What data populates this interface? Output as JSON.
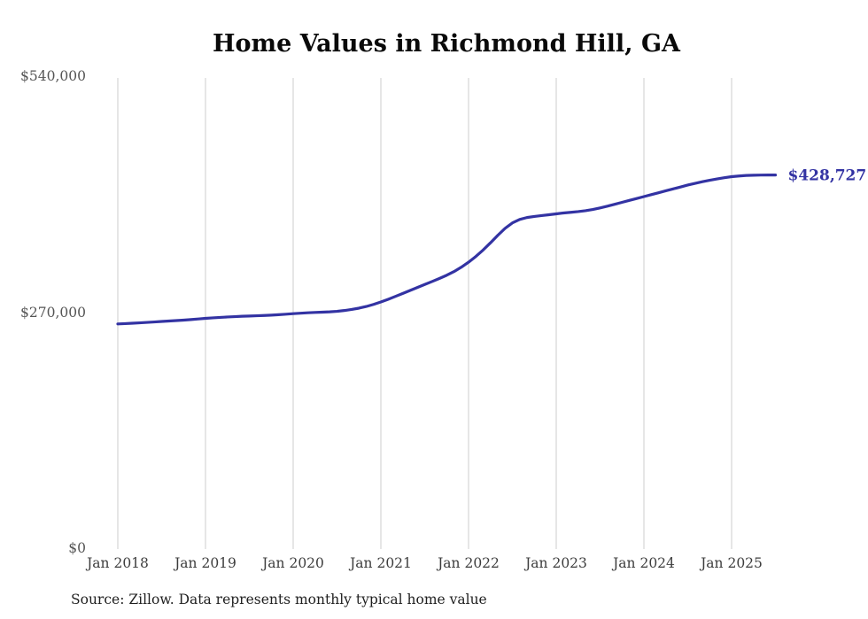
{
  "page": {
    "title": "Home Values in Richmond Hill, GA",
    "source_note": "Source: Zillow. Data represents monthly typical home value"
  },
  "chart_data": {
    "type": "line",
    "title": "Home Values in Richmond Hill, GA",
    "xlabel": "",
    "ylabel": "",
    "ylim": [
      0,
      540000
    ],
    "y_ticks": [
      0,
      270000,
      540000
    ],
    "y_tick_labels": [
      "$0",
      "$270,000",
      "$540,000"
    ],
    "x_tick_labels": [
      "Jan 2018",
      "Jan 2019",
      "Jan 2020",
      "Jan 2021",
      "Jan 2022",
      "Jan 2023",
      "Jan 2024",
      "Jan 2025"
    ],
    "x_start": "Jan 2018",
    "x_end": "Jul 2025",
    "x_frequency": "monthly",
    "grid": "vertical-only",
    "legend": "none",
    "line_color": "#3333a3",
    "grid_color": "#cccccc",
    "annotation": {
      "text": "$428,727",
      "value": 428727
    },
    "series": [
      {
        "name": "Typical home value",
        "values": [
          258000,
          258400,
          258800,
          259300,
          259800,
          260300,
          260900,
          261400,
          261900,
          262400,
          263000,
          263700,
          264400,
          265000,
          265500,
          266000,
          266400,
          266800,
          267100,
          267400,
          267700,
          268100,
          268600,
          269200,
          269800,
          270300,
          270800,
          271200,
          271500,
          271900,
          272500,
          273400,
          274600,
          276100,
          278000,
          280400,
          283200,
          286300,
          289600,
          293000,
          296400,
          299800,
          303200,
          306600,
          310100,
          313800,
          318000,
          323000,
          328800,
          335400,
          342800,
          351000,
          359600,
          367600,
          373800,
          377800,
          380000,
          381200,
          382200,
          383200,
          384200,
          385200,
          386000,
          386800,
          387800,
          389200,
          391000,
          393000,
          395200,
          397400,
          399600,
          401800,
          404000,
          406200,
          408400,
          410600,
          412800,
          415000,
          417200,
          419200,
          421000,
          422700,
          424200,
          425600,
          426800,
          427600,
          428200,
          428500,
          428650,
          428700,
          428727
        ]
      }
    ]
  }
}
